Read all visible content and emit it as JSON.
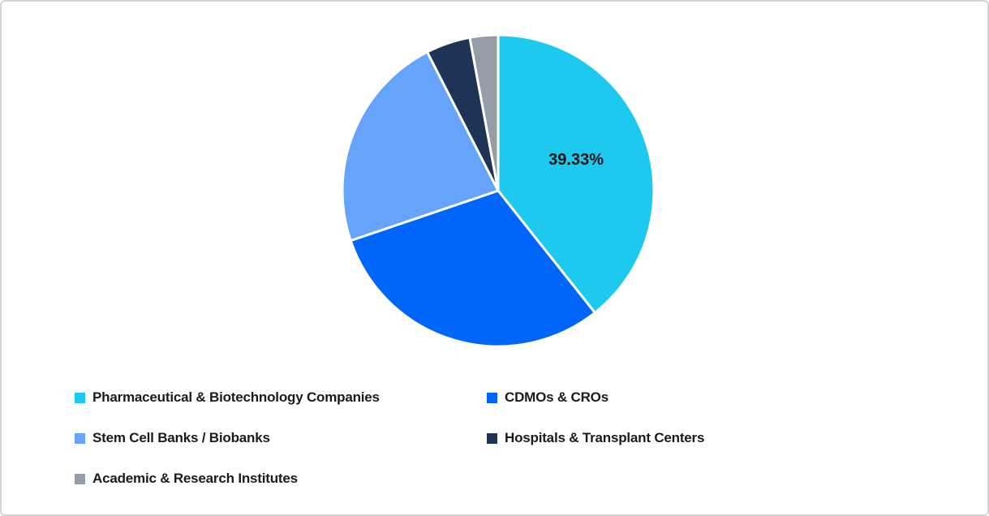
{
  "frame": {
    "background": "#ffffff",
    "border_color": "#d5d5d5"
  },
  "chart_data": {
    "type": "pie",
    "title": "",
    "start_angle_deg": 0,
    "direction": "clockwise",
    "legend_position": "bottom-left",
    "separator_color": "#ffffff",
    "data_label_color": "#151515",
    "slices": [
      {
        "label": "Pharmaceutical & Biotechnology Companies",
        "value": 39.33,
        "color": "#1EC9F0",
        "data_label": "39.33%"
      },
      {
        "label": "CDMOs & CROs",
        "value": 30.47,
        "color": "#0066FA",
        "data_label": ""
      },
      {
        "label": "Stem Cell Banks / Biobanks",
        "value": 22.67,
        "color": "#66A4FB",
        "data_label": ""
      },
      {
        "label": "Hospitals & Transplant Centers",
        "value": 4.61,
        "color": "#1F3356",
        "data_label": ""
      },
      {
        "label": "Academic & Research Institutes",
        "value": 2.92,
        "color": "#959DA9",
        "data_label": ""
      }
    ]
  },
  "legend": {
    "items": [
      {
        "label": "Pharmaceutical & Biotechnology Companies"
      },
      {
        "label": "CDMOs & CROs"
      },
      {
        "label": "Stem Cell Banks / Biobanks"
      },
      {
        "label": "Hospitals & Transplant Centers"
      },
      {
        "label": "Academic & Research Institutes"
      }
    ]
  }
}
